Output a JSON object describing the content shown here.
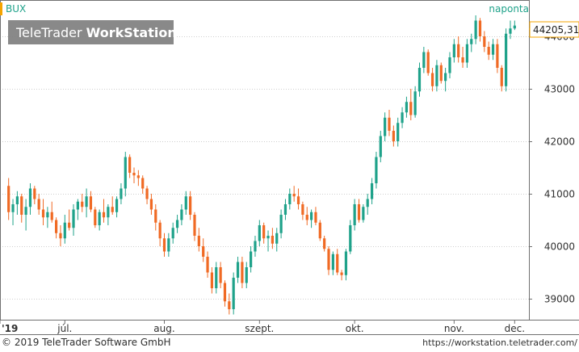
{
  "header": {
    "symbol": "BUX",
    "period": "naponta",
    "logo": {
      "light": "TeleTrader ",
      "bold": "WorkStation"
    },
    "last_value": "44205,31"
  },
  "footer": {
    "copyright": "© 2019 TeleTrader Software GmbH",
    "url": "https://workstation.teletrader.com/"
  },
  "colors": {
    "up": "#1fa28a",
    "down": "#f06a24",
    "frame": "#707070",
    "text": "#303030",
    "accent": "#f5a400",
    "period_text": "#1fa28a",
    "logo_bg": "#7f7f7f"
  },
  "chart_data": {
    "type": "candlestick",
    "x_tick_labels": [
      "'19",
      "júl.",
      "aug.",
      "szept.",
      "okt.",
      "nov.",
      "dec."
    ],
    "y_tick_labels": [
      "39000",
      "40000",
      "41000",
      "42000",
      "43000",
      "44000"
    ],
    "y_ticks": [
      39000,
      40000,
      41000,
      42000,
      43000,
      44000
    ],
    "ylim": [
      38600,
      44600
    ],
    "grid": true,
    "last_value": 44205.31,
    "candles": [
      [
        41150,
        41300,
        40500,
        40650
      ],
      [
        40650,
        40900,
        40400,
        40800
      ],
      [
        40800,
        41050,
        40600,
        40950
      ],
      [
        40950,
        41000,
        40450,
        40600
      ],
      [
        40600,
        40900,
        40300,
        40750
      ],
      [
        40750,
        41200,
        40600,
        41100
      ],
      [
        41100,
        41150,
        40800,
        40900
      ],
      [
        40900,
        41000,
        40600,
        40700
      ],
      [
        40700,
        40900,
        40400,
        40550
      ],
      [
        40550,
        40750,
        40350,
        40650
      ],
      [
        40650,
        40850,
        40450,
        40500
      ],
      [
        40500,
        40550,
        40150,
        40250
      ],
      [
        40250,
        40400,
        40000,
        40150
      ],
      [
        40150,
        40600,
        40050,
        40450
      ],
      [
        40450,
        40700,
        40300,
        40350
      ],
      [
        40350,
        40800,
        40200,
        40700
      ],
      [
        40700,
        40900,
        40500,
        40850
      ],
      [
        40850,
        41000,
        40650,
        40750
      ],
      [
        40750,
        41100,
        40550,
        40950
      ],
      [
        40950,
        41050,
        40650,
        40700
      ],
      [
        40700,
        40750,
        40350,
        40400
      ],
      [
        40400,
        40700,
        40300,
        40650
      ],
      [
        40650,
        40900,
        40450,
        40550
      ],
      [
        40550,
        40800,
        40400,
        40750
      ],
      [
        40750,
        40950,
        40600,
        40650
      ],
      [
        40650,
        40950,
        40550,
        40900
      ],
      [
        40900,
        41200,
        40800,
        41100
      ],
      [
        41100,
        41800,
        40950,
        41700
      ],
      [
        41700,
        41750,
        41300,
        41400
      ],
      [
        41400,
        41500,
        41200,
        41350
      ],
      [
        41350,
        41450,
        41150,
        41300
      ],
      [
        41300,
        41350,
        41000,
        41100
      ],
      [
        41100,
        41150,
        40800,
        40900
      ],
      [
        40900,
        41000,
        40600,
        40700
      ],
      [
        40700,
        40800,
        40300,
        40450
      ],
      [
        40450,
        40500,
        40000,
        40150
      ],
      [
        40150,
        40250,
        39800,
        39900
      ],
      [
        39900,
        40250,
        39800,
        40150
      ],
      [
        40150,
        40450,
        40050,
        40350
      ],
      [
        40350,
        40600,
        40250,
        40500
      ],
      [
        40500,
        40800,
        40400,
        40700
      ],
      [
        40700,
        41050,
        40600,
        40950
      ],
      [
        40950,
        41050,
        40500,
        40600
      ],
      [
        40600,
        40650,
        40100,
        40200
      ],
      [
        40200,
        40350,
        39900,
        40000
      ],
      [
        40000,
        40150,
        39700,
        39800
      ],
      [
        39800,
        39900,
        39400,
        39500
      ],
      [
        39500,
        39600,
        39100,
        39200
      ],
      [
        39200,
        39700,
        39100,
        39600
      ],
      [
        39600,
        39700,
        39200,
        39300
      ],
      [
        39300,
        39350,
        38850,
        38950
      ],
      [
        38950,
        39100,
        38700,
        38800
      ],
      [
        38800,
        39500,
        38700,
        39400
      ],
      [
        39400,
        39800,
        39300,
        39700
      ],
      [
        39700,
        39800,
        39200,
        39300
      ],
      [
        39300,
        39700,
        39200,
        39600
      ],
      [
        39600,
        40000,
        39500,
        39900
      ],
      [
        39900,
        40200,
        39800,
        40100
      ],
      [
        40100,
        40500,
        40000,
        40400
      ],
      [
        40400,
        40450,
        40050,
        40150
      ],
      [
        40150,
        40300,
        39900,
        40200
      ],
      [
        40200,
        40350,
        39950,
        40050
      ],
      [
        40050,
        40350,
        39900,
        40250
      ],
      [
        40250,
        40700,
        40150,
        40600
      ],
      [
        40600,
        40900,
        40500,
        40800
      ],
      [
        40800,
        41100,
        40700,
        41000
      ],
      [
        41000,
        41150,
        40850,
        40950
      ],
      [
        40950,
        41100,
        40700,
        40800
      ],
      [
        40800,
        40850,
        40500,
        40600
      ],
      [
        40600,
        40750,
        40400,
        40500
      ],
      [
        40500,
        40700,
        40350,
        40650
      ],
      [
        40650,
        40750,
        40400,
        40450
      ],
      [
        40450,
        40500,
        40100,
        40150
      ],
      [
        40150,
        40200,
        39900,
        39950
      ],
      [
        39950,
        40000,
        39450,
        39550
      ],
      [
        39550,
        39900,
        39450,
        39850
      ],
      [
        39850,
        39950,
        39450,
        39500
      ],
      [
        39500,
        39550,
        39350,
        39450
      ],
      [
        39450,
        39950,
        39350,
        39900
      ],
      [
        39900,
        40500,
        39850,
        40400
      ],
      [
        40400,
        40900,
        40300,
        40800
      ],
      [
        40800,
        40900,
        40450,
        40500
      ],
      [
        40500,
        40800,
        40450,
        40750
      ],
      [
        40750,
        41000,
        40600,
        40900
      ],
      [
        40900,
        41300,
        40800,
        41200
      ],
      [
        41200,
        41800,
        41100,
        41700
      ],
      [
        41700,
        42200,
        41600,
        42100
      ],
      [
        42100,
        42550,
        42000,
        42450
      ],
      [
        42450,
        42600,
        42100,
        42200
      ],
      [
        42200,
        42300,
        41900,
        42000
      ],
      [
        42000,
        42450,
        41900,
        42350
      ],
      [
        42350,
        42650,
        42250,
        42550
      ],
      [
        42550,
        42850,
        42450,
        42750
      ],
      [
        42750,
        43000,
        42400,
        42500
      ],
      [
        42500,
        43050,
        42450,
        42950
      ],
      [
        42950,
        43500,
        42850,
        43400
      ],
      [
        43400,
        43800,
        43300,
        43700
      ],
      [
        43700,
        43750,
        43250,
        43300
      ],
      [
        43300,
        43400,
        42950,
        43050
      ],
      [
        43050,
        43550,
        42950,
        43450
      ],
      [
        43450,
        43500,
        43100,
        43150
      ],
      [
        43150,
        43400,
        42950,
        43300
      ],
      [
        43300,
        43700,
        43200,
        43600
      ],
      [
        43600,
        43950,
        43500,
        43850
      ],
      [
        43850,
        44000,
        43500,
        43600
      ],
      [
        43600,
        43800,
        43400,
        43500
      ],
      [
        43500,
        43950,
        43400,
        43850
      ],
      [
        43850,
        44050,
        43700,
        43950
      ],
      [
        43950,
        44400,
        43850,
        44300
      ],
      [
        44300,
        44350,
        43900,
        44000
      ],
      [
        44000,
        44100,
        43700,
        43800
      ],
      [
        43800,
        43900,
        43550,
        43650
      ],
      [
        43650,
        43950,
        43550,
        43850
      ],
      [
        43850,
        43950,
        43300,
        43400
      ],
      [
        43400,
        43450,
        42950,
        43050
      ],
      [
        43050,
        44150,
        42950,
        44050
      ],
      [
        44050,
        44300,
        43950,
        44150
      ],
      [
        44150,
        44300,
        44120,
        44205.31
      ]
    ]
  }
}
